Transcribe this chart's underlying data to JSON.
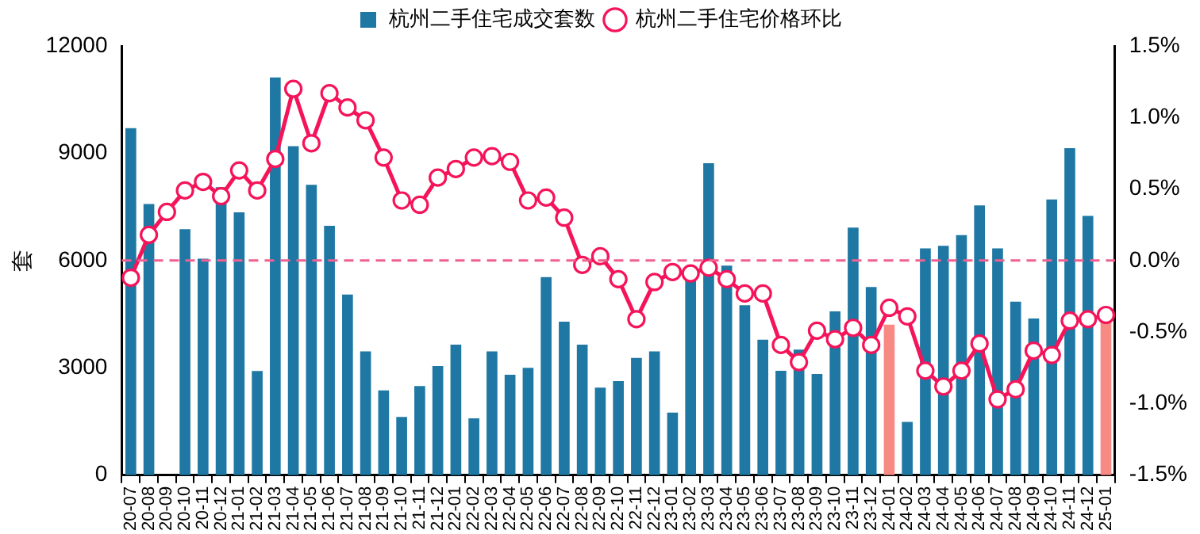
{
  "chart_data": {
    "type": "bar",
    "ylabel": "套",
    "categories": [
      "20-07",
      "20-08",
      "20-09",
      "20-10",
      "20-11",
      "20-12",
      "21-01",
      "21-02",
      "21-03",
      "21-04",
      "21-05",
      "21-06",
      "21-07",
      "21-08",
      "21-09",
      "21-10",
      "21-11",
      "21-12",
      "22-01",
      "22-02",
      "22-03",
      "22-04",
      "22-05",
      "22-06",
      "22-07",
      "22-08",
      "22-09",
      "22-10",
      "22-11",
      "22-12",
      "23-01",
      "23-02",
      "23-03",
      "23-04",
      "23-05",
      "23-06",
      "23-07",
      "23-08",
      "23-09",
      "23-10",
      "23-11",
      "23-12",
      "24-01",
      "24-02",
      "24-03",
      "24-04",
      "24-05",
      "24-06",
      "24-07",
      "24-08",
      "24-09",
      "24-10",
      "24-11",
      "24-12",
      "25-01"
    ],
    "series": [
      {
        "name": "杭州二手住宅成交套数",
        "color": "#1f78a4",
        "colors": [
          "#1f78a4",
          "#1f78a4",
          "#1f78a4",
          "#1f78a4",
          "#1f78a4",
          "#1f78a4",
          "#1f78a4",
          "#1f78a4",
          "#1f78a4",
          "#1f78a4",
          "#1f78a4",
          "#1f78a4",
          "#1f78a4",
          "#1f78a4",
          "#1f78a4",
          "#1f78a4",
          "#1f78a4",
          "#1f78a4",
          "#1f78a4",
          "#1f78a4",
          "#1f78a4",
          "#1f78a4",
          "#1f78a4",
          "#1f78a4",
          "#1f78a4",
          "#1f78a4",
          "#1f78a4",
          "#1f78a4",
          "#1f78a4",
          "#1f78a4",
          "#1f78a4",
          "#1f78a4",
          "#1f78a4",
          "#1f78a4",
          "#1f78a4",
          "#1f78a4",
          "#1f78a4",
          "#1f78a4",
          "#1f78a4",
          "#1f78a4",
          "#1f78a4",
          "#1f78a4",
          "#f88a84",
          "#1f78a4",
          "#1f78a4",
          "#1f78a4",
          "#1f78a4",
          "#1f78a4",
          "#1f78a4",
          "#1f78a4",
          "#1f78a4",
          "#1f78a4",
          "#1f78a4",
          "#1f78a4",
          "#f88a84"
        ],
        "values": [
          9700,
          7580,
          null,
          6880,
          6050,
          8050,
          7350,
          2910,
          11120,
          9200,
          8120,
          6970,
          5050,
          3460,
          2370,
          1630,
          2490,
          3050,
          3650,
          1590,
          3460,
          2810,
          3000,
          5540,
          4290,
          3650,
          2450,
          2630,
          3280,
          3460,
          1750,
          5540,
          8720,
          5860,
          4750,
          3790,
          2920,
          3510,
          2830,
          4580,
          6920,
          5260,
          4210,
          1490,
          6340,
          6410,
          6710,
          7540,
          6340,
          4850,
          4380,
          7710,
          9140,
          7250,
          4300
        ]
      },
      {
        "name": "杭州二手住宅价格环比",
        "type": "line",
        "axis": "y2",
        "color": "#f5145a",
        "values": [
          -0.12,
          0.18,
          0.34,
          0.49,
          0.55,
          0.45,
          0.63,
          0.49,
          0.71,
          1.2,
          0.82,
          1.17,
          1.07,
          0.98,
          0.72,
          0.42,
          0.39,
          0.58,
          0.64,
          0.72,
          0.73,
          0.69,
          0.42,
          0.44,
          0.3,
          -0.03,
          0.03,
          -0.13,
          -0.41,
          -0.15,
          -0.08,
          -0.09,
          -0.05,
          -0.13,
          -0.23,
          -0.23,
          -0.59,
          -0.71,
          -0.49,
          -0.55,
          -0.47,
          -0.59,
          -0.33,
          -0.39,
          -0.77,
          -0.88,
          -0.77,
          -0.58,
          -0.97,
          -0.9,
          -0.63,
          -0.66,
          -0.42,
          -0.41,
          -0.38
        ]
      }
    ],
    "ylim": [
      0,
      12000
    ],
    "yticks": [
      0,
      3000,
      6000,
      9000,
      12000
    ],
    "y2lim": [
      -1.5,
      1.5
    ],
    "y2ticks": [
      {
        "value": -1.5,
        "label": "-1.5%"
      },
      {
        "value": -1,
        "label": "-1.0%"
      },
      {
        "value": -0.5,
        "label": "-0.5%"
      },
      {
        "value": 0,
        "label": "0.0%"
      },
      {
        "value": 0.5,
        "label": "0.5%"
      },
      {
        "value": 1,
        "label": "1.0%"
      },
      {
        "value": 1.5,
        "label": "1.5%"
      }
    ],
    "ref_lines": [
      {
        "axis": "y2",
        "value": 0,
        "color": "#f06090",
        "line_style": "dashed"
      }
    ],
    "grid": false,
    "legend": "top",
    "marker": "circle",
    "line_style": "solid"
  }
}
